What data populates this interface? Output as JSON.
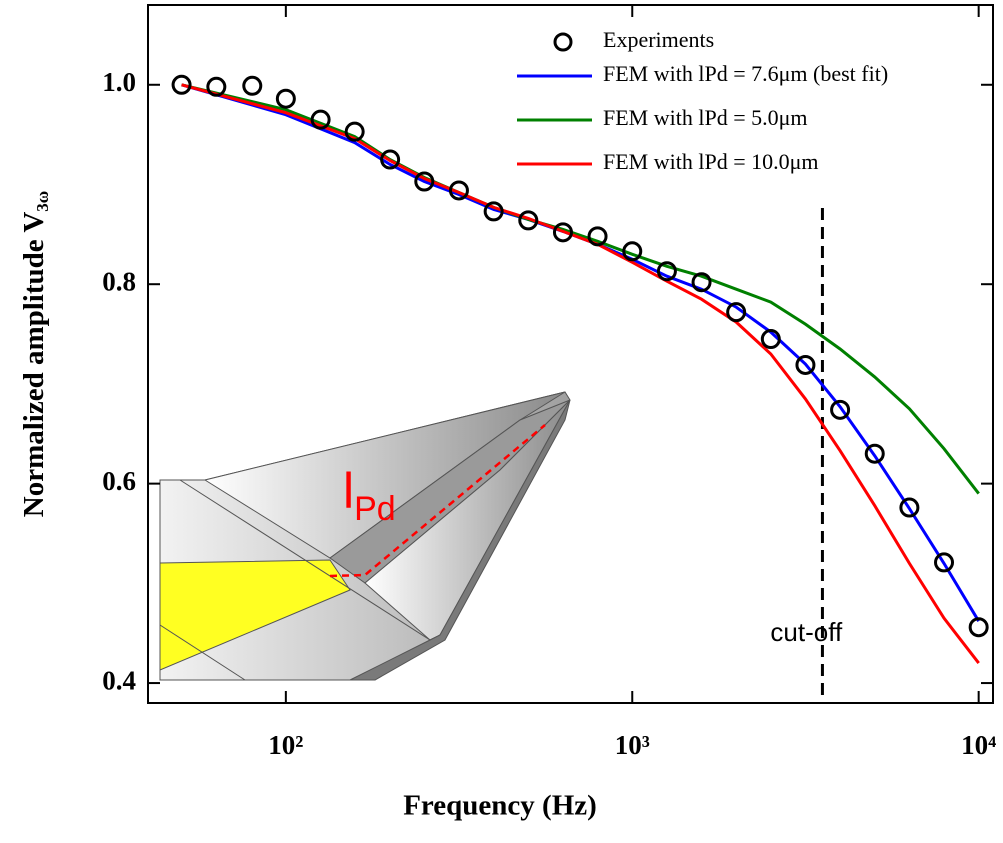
{
  "chart_data": {
    "type": "line",
    "xlabel": "Frequency (Hz)",
    "ylabel": {
      "text": "Normalized amplitude V",
      "sub": "3ω"
    },
    "xscale": "log",
    "xlim": [
      40,
      11000
    ],
    "ylim": [
      0.38,
      1.08
    ],
    "xticks": [
      {
        "value": 100,
        "label": "10²"
      },
      {
        "value": 1000,
        "label": "10³"
      },
      {
        "value": 10000,
        "label": "10⁴"
      }
    ],
    "yticks": [
      0.4,
      0.6,
      0.8,
      {
        "value": 1,
        "label": "1.0"
      }
    ],
    "grid": false,
    "legend": "top-right",
    "series": [
      {
        "name": "Experiments",
        "style": "markers",
        "color": "#000000",
        "x": [
          50,
          63,
          80,
          100,
          126,
          158,
          200,
          251,
          316,
          398,
          501,
          631,
          794,
          1000,
          1259,
          1585,
          1995,
          2512,
          3162,
          3981,
          5012,
          6310,
          7943,
          10000
        ],
        "values": [
          1.0,
          0.998,
          0.999,
          0.986,
          0.965,
          0.953,
          0.925,
          0.903,
          0.894,
          0.873,
          0.864,
          0.852,
          0.848,
          0.833,
          0.813,
          0.802,
          0.772,
          0.745,
          0.719,
          0.674,
          0.63,
          0.576,
          0.521,
          0.456
        ]
      },
      {
        "name": "FEM with lPd = 7.6μm (best fit)",
        "style": "line",
        "color": "#0000ff",
        "x": [
          50,
          100,
          158,
          200,
          251,
          316,
          398,
          501,
          631,
          794,
          1000,
          1259,
          1585,
          1995,
          2512,
          3162,
          3981,
          5012,
          6310,
          7943,
          10000
        ],
        "values": [
          1.0,
          0.97,
          0.942,
          0.92,
          0.903,
          0.89,
          0.875,
          0.865,
          0.853,
          0.84,
          0.825,
          0.808,
          0.795,
          0.777,
          0.752,
          0.72,
          0.677,
          0.628,
          0.575,
          0.52,
          0.462
        ]
      },
      {
        "name": "FEM with lPd = 5.0μm",
        "style": "line",
        "color": "#008000",
        "x": [
          50,
          100,
          158,
          200,
          251,
          316,
          398,
          501,
          631,
          794,
          1000,
          1259,
          1585,
          1995,
          2512,
          3162,
          3981,
          5012,
          6310,
          7943,
          10000
        ],
        "values": [
          1.0,
          0.975,
          0.948,
          0.925,
          0.907,
          0.892,
          0.877,
          0.865,
          0.855,
          0.843,
          0.83,
          0.818,
          0.808,
          0.795,
          0.782,
          0.76,
          0.735,
          0.707,
          0.675,
          0.635,
          0.59
        ]
      },
      {
        "name": "FEM with lPd = 10.0μm",
        "style": "line",
        "color": "#ff0000",
        "x": [
          50,
          100,
          158,
          200,
          251,
          316,
          398,
          501,
          631,
          794,
          1000,
          1259,
          1585,
          1995,
          2512,
          3162,
          3981,
          5012,
          6310,
          7943,
          10000
        ],
        "values": [
          1.0,
          0.972,
          0.946,
          0.924,
          0.906,
          0.892,
          0.877,
          0.866,
          0.853,
          0.84,
          0.822,
          0.803,
          0.785,
          0.762,
          0.73,
          0.685,
          0.633,
          0.578,
          0.52,
          0.465,
          0.42
        ]
      }
    ],
    "cutoff": {
      "x": 3540,
      "label": "cut-off"
    },
    "inset_label": {
      "text": "l",
      "sub": "Pd"
    }
  }
}
